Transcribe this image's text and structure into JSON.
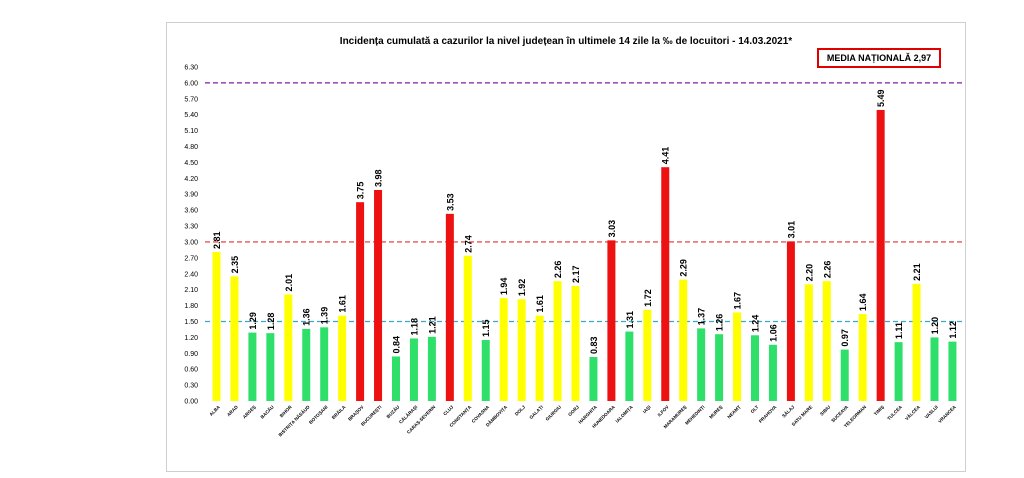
{
  "chart_data": {
    "type": "bar",
    "title": "Incidența cumulată a cazurilor la nivel județean în ultimele 14 zile la ‰ de locuitori - 14.03.2021*",
    "annotation": "MEDIA NAȚIONALĂ 2,97",
    "xlabel": "",
    "ylabel": "",
    "ylim": [
      0,
      6.3
    ],
    "yticks": [
      "0.00",
      "0.30",
      "0.60",
      "0.90",
      "1.20",
      "1.50",
      "1.80",
      "2.10",
      "2.40",
      "2.70",
      "3.00",
      "3.30",
      "3.60",
      "3.90",
      "4.20",
      "4.50",
      "4.80",
      "5.10",
      "5.40",
      "5.70",
      "6.00",
      "6.30"
    ],
    "grid": false,
    "reference_lines": [
      {
        "value": 6.0,
        "color": "#7a1fa2",
        "style": "dashed"
      },
      {
        "value": 3.0,
        "color": "#e03030",
        "style": "dashed"
      },
      {
        "value": 1.5,
        "color": "#3aa9c9",
        "style": "dashed"
      }
    ],
    "colors": {
      "green": "#2ee06a",
      "yellow": "#ffff00",
      "red": "#ee1111"
    },
    "categories": [
      "ALBA",
      "ARAD",
      "ARGEȘ",
      "BACĂU",
      "BIHOR",
      "BISTRIȚA NĂSĂUD",
      "BOTOȘANI",
      "BRĂILA",
      "BRAȘOV",
      "BUCUREȘTI",
      "BUZĂU",
      "CĂLĂRAȘI",
      "CARAȘ-SEVERIN",
      "CLUJ",
      "CONSTANȚA",
      "COVASNA",
      "DÂMBOVIȚA",
      "DOLJ",
      "GALAȚI",
      "GIURGIU",
      "GORJ",
      "HARGHITA",
      "HUNEDOARA",
      "IALOMIȚA",
      "IAȘI",
      "ILFOV",
      "MARAMUREȘ",
      "MEHEDINȚI",
      "MUREȘ",
      "NEAMȚ",
      "OLT",
      "PRAHOVA",
      "SĂLAJ",
      "SATU MARE",
      "SIBIU",
      "SUCEAVA",
      "TELEORMAN",
      "TIMIȘ",
      "TULCEA",
      "VÂLCEA",
      "VASLUI",
      "VRANCEA"
    ],
    "values": [
      2.81,
      2.35,
      1.29,
      1.28,
      2.01,
      1.36,
      1.39,
      1.61,
      3.75,
      3.98,
      0.84,
      1.18,
      1.21,
      3.53,
      2.74,
      1.15,
      1.94,
      1.92,
      1.61,
      2.26,
      2.17,
      0.83,
      3.03,
      1.31,
      1.72,
      4.41,
      2.29,
      1.37,
      1.26,
      1.67,
      1.24,
      1.06,
      3.01,
      2.2,
      2.26,
      0.97,
      1.64,
      5.49,
      1.11,
      2.21,
      1.2,
      1.12
    ],
    "value_labels": [
      "2.81",
      "2.35",
      "1.29",
      "1.28",
      "2.01",
      "1.36",
      "1.39",
      "1.61",
      "3.75",
      "3.98",
      "0.84",
      "1.18",
      "1.21",
      "3.53",
      "2.74",
      "1.15",
      "1.94",
      "1.92",
      "1.61",
      "2.26",
      "2.17",
      "0.83",
      "3.03",
      "1.31",
      "1.72",
      "4.41",
      "2.29",
      "1.37",
      "1.26",
      "1.67",
      "1.24",
      "1.06",
      "3.01",
      "2.20",
      "2.26",
      "0.97",
      "1.64",
      "5.49",
      "1.11",
      "2.21",
      "1.20",
      "1.12"
    ]
  }
}
